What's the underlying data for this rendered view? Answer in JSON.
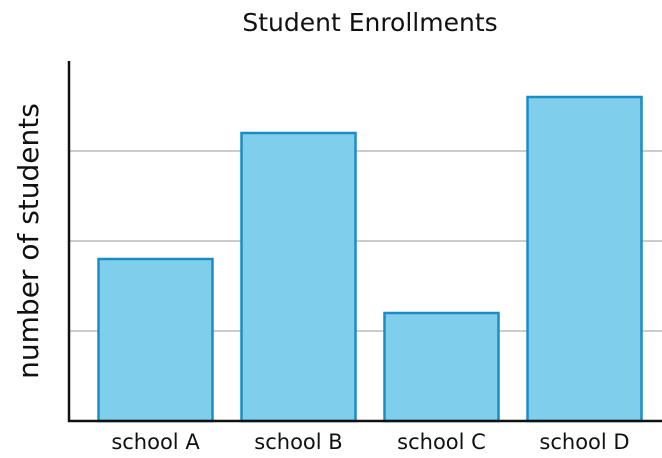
{
  "chart_data": {
    "type": "bar",
    "title": "Student Enrollments",
    "y_label": "number of students",
    "categories": [
      "school A",
      "school B",
      "school C",
      "school D"
    ],
    "values": [
      1.8,
      3.2,
      1.2,
      3.6
    ],
    "color": "#7fcfec",
    "edge_color": "#1a8ec4",
    "ylim": [
      0,
      4
    ],
    "yticks": [
      0,
      1,
      2,
      3
    ],
    "grid": true
  }
}
